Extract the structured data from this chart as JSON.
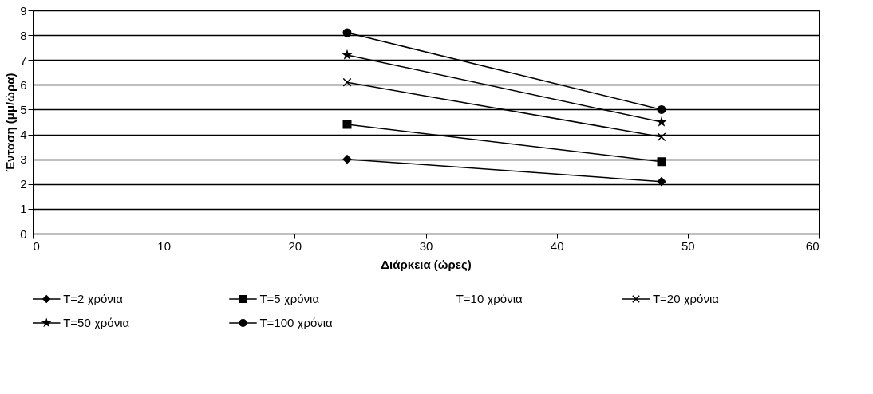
{
  "chart_data": {
    "type": "line",
    "xlabel": "Διάρκεια (ώρες)",
    "ylabel": "Ένταση (μμ/ώρα)",
    "x": [
      24,
      48
    ],
    "xlim": [
      0,
      60
    ],
    "xticks": [
      0,
      10,
      20,
      30,
      40,
      50,
      60
    ],
    "ylim": [
      0,
      9
    ],
    "yticks": [
      0,
      1,
      2,
      3,
      4,
      5,
      6,
      7,
      8,
      9
    ],
    "grid": "y",
    "legend": "bottom",
    "line_style": "solid",
    "series": [
      {
        "name": "T=2 χρόνια",
        "color": "#000000",
        "marker": "diamond",
        "values": [
          3.0,
          2.1
        ]
      },
      {
        "name": "T=5 χρόνια",
        "color": "#000000",
        "marker": "square",
        "values": [
          4.4,
          2.9
        ]
      },
      {
        "name": "T=10 χρόνια",
        "marker": "none",
        "values": [
          null,
          null
        ]
      },
      {
        "name": "T=20 χρόνια",
        "color": "#000000",
        "marker": "cross",
        "values": [
          6.1,
          3.9
        ]
      },
      {
        "name": "T=50 χρόνια",
        "color": "#000000",
        "marker": "star",
        "values": [
          7.2,
          4.5
        ]
      },
      {
        "name": "T=100 χρόνια",
        "color": "#000000",
        "marker": "circle",
        "values": [
          8.1,
          5.0
        ]
      }
    ]
  }
}
